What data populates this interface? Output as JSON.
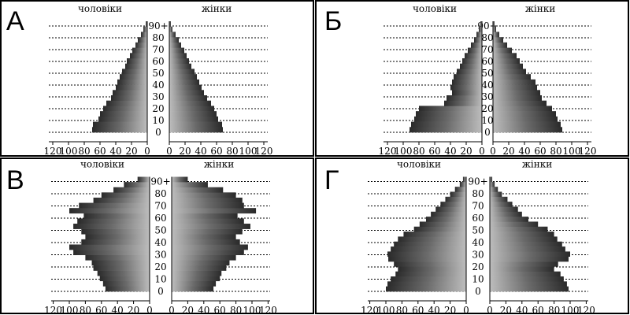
{
  "chart_data": [
    {
      "type": "bar",
      "panel": "А",
      "left_label": "чоловіки",
      "right_label": "жінки",
      "age_labels": [
        "0",
        "10",
        "20",
        "30",
        "40",
        "50",
        "60",
        "70",
        "80",
        "90+"
      ],
      "x_ticks": [
        120,
        100,
        80,
        60,
        40,
        20,
        0
      ],
      "xlim": [
        0,
        120
      ],
      "male": [
        70,
        69,
        62,
        60,
        56,
        52,
        46,
        44,
        40,
        38,
        35,
        32,
        28,
        26,
        22,
        19,
        15,
        12,
        8,
        5,
        2
      ],
      "female": [
        68,
        67,
        62,
        60,
        57,
        53,
        48,
        44,
        41,
        38,
        35,
        32,
        28,
        25,
        22,
        19,
        15,
        12,
        8,
        4,
        2
      ]
    },
    {
      "type": "bar",
      "panel": "Б",
      "left_label": "чоловіки",
      "right_label": "жінки",
      "age_labels": [
        "0",
        "10",
        "20",
        "30",
        "40",
        "50",
        "60",
        "70",
        "80",
        "90+"
      ],
      "x_ticks": [
        120,
        100,
        80,
        60,
        40,
        20,
        0
      ],
      "xlim": [
        0,
        120
      ],
      "male": [
        92,
        90,
        86,
        84,
        80,
        48,
        45,
        38,
        40,
        38,
        36,
        32,
        28,
        25,
        22,
        18,
        14,
        10,
        7,
        4,
        2
      ],
      "female": [
        88,
        86,
        82,
        80,
        75,
        68,
        62,
        60,
        56,
        54,
        48,
        42,
        38,
        34,
        30,
        24,
        18,
        13,
        8,
        4,
        2
      ]
    },
    {
      "type": "bar",
      "panel": "В",
      "left_label": "чоловіки",
      "right_label": "жінки",
      "age_labels": [
        "0",
        "10",
        "20",
        "30",
        "40",
        "50",
        "60",
        "70",
        "80",
        "90+"
      ],
      "x_ticks": [
        120,
        100,
        80,
        60,
        40,
        20,
        0
      ],
      "xlim": [
        0,
        120
      ],
      "male": [
        55,
        58,
        62,
        65,
        70,
        72,
        80,
        95,
        100,
        85,
        80,
        85,
        95,
        90,
        82,
        100,
        88,
        70,
        60,
        45,
        32,
        15
      ],
      "female": [
        52,
        55,
        60,
        62,
        68,
        72,
        80,
        90,
        95,
        85,
        80,
        88,
        98,
        90,
        82,
        105,
        90,
        88,
        80,
        64,
        45,
        20
      ]
    },
    {
      "type": "bar",
      "panel": "Г",
      "left_label": "чоловіки",
      "right_label": "жінки",
      "age_labels": [
        "0",
        "10",
        "20",
        "30",
        "40",
        "50",
        "60",
        "70",
        "80",
        "90+"
      ],
      "x_ticks": [
        120,
        100,
        80,
        60,
        40,
        20,
        0
      ],
      "xlim": [
        0,
        120
      ],
      "male": [
        100,
        98,
        94,
        88,
        85,
        90,
        97,
        98,
        94,
        90,
        85,
        78,
        65,
        58,
        50,
        44,
        38,
        32,
        26,
        20,
        14,
        8,
        4
      ],
      "female": [
        98,
        96,
        92,
        88,
        80,
        85,
        98,
        100,
        94,
        90,
        84,
        80,
        72,
        60,
        48,
        40,
        35,
        28,
        22,
        15,
        10,
        6,
        3
      ]
    }
  ]
}
